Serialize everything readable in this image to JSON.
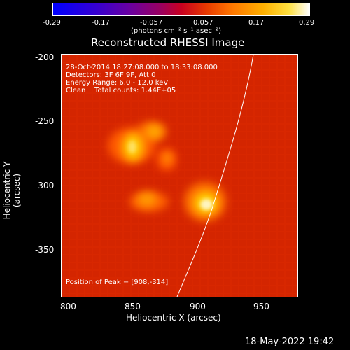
{
  "colorbar": {
    "ticks": [
      "-0.29",
      "-0.17",
      "-0.057",
      "0.057",
      "0.17",
      "0.29"
    ],
    "units": "(photons cm⁻² s⁻¹ asec⁻²)"
  },
  "title": "Reconstructed RHESSI Image",
  "info": {
    "time": "28-Oct-2014 18:27:08.000 to 18:33:08.000",
    "detectors": "Detectors: 3F 6F 9F, Att 0",
    "energy": "Energy Range: 6.0 - 12.0 keV",
    "clean": "Clean    Total counts: 1.44E+05",
    "peak": "Position of Peak = [908,-314]"
  },
  "axes": {
    "xlabel": "Heliocentric X (arcsec)",
    "ylabel": "Heliocentric Y (arcsec)",
    "xticks": [
      "800",
      "850",
      "900",
      "950"
    ],
    "yticks": [
      "-200",
      "-250",
      "-300",
      "-350"
    ]
  },
  "footer": {
    "date": "18-May-2022 19:42"
  }
}
